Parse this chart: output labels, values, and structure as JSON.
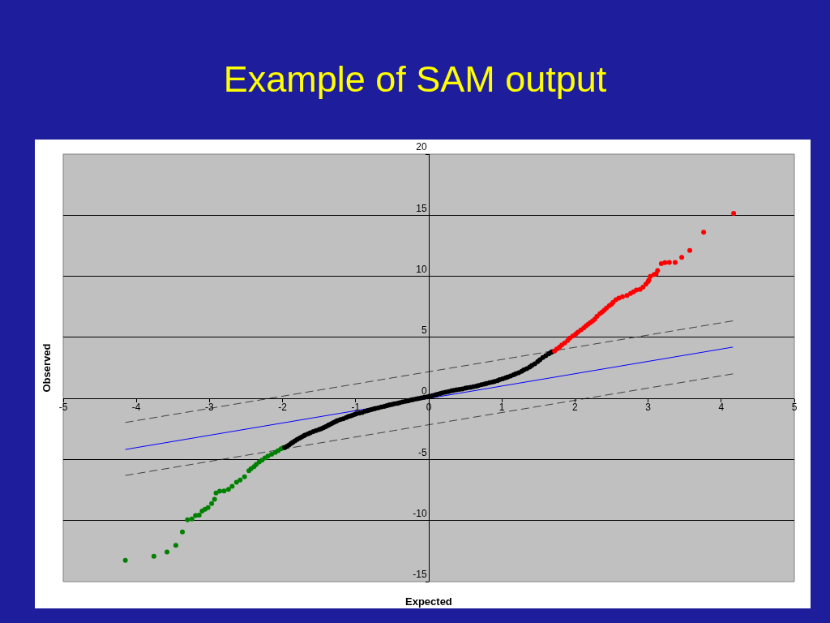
{
  "chart_data": {
    "type": "scatter",
    "title": "Example of SAM output",
    "xlabel": "Expected",
    "ylabel": "Observed",
    "xlim": [
      -5,
      5
    ],
    "ylim": [
      -15,
      20
    ],
    "xticks": [
      -5,
      -4,
      -3,
      -2,
      -1,
      0,
      1,
      2,
      3,
      4,
      5
    ],
    "yticks": [
      -15,
      -10,
      -5,
      0,
      5,
      10,
      15,
      20
    ],
    "grid": "y",
    "marker": "circle",
    "series": [
      {
        "type": "line",
        "marker": "none",
        "color": "#0000ff",
        "line_style": "solid",
        "x": [
          -4.15,
          4.16
        ],
        "values": [
          -4.18,
          4.2
        ]
      },
      {
        "type": "line",
        "marker": "none",
        "color": "#404040",
        "line_style": "dashed",
        "x": [
          -4.15,
          4.16
        ],
        "values": [
          -1.97,
          6.35
        ]
      },
      {
        "type": "line",
        "marker": "none",
        "color": "#404040",
        "line_style": "dashed",
        "x": [
          -4.15,
          4.16
        ],
        "values": [
          -6.31,
          2.01
        ]
      },
      {
        "color": "#008000",
        "x": [
          -4.15,
          -3.76,
          -3.58,
          -3.46,
          -3.37,
          -3.3,
          -3.24,
          -3.19,
          -3.14,
          -3.1,
          -3.06,
          -3.02,
          -2.97,
          -2.93,
          -2.91,
          -2.86,
          -2.8,
          -2.74,
          -2.69,
          -2.63,
          -2.58,
          -2.52,
          -2.46,
          -2.43,
          -2.39,
          -2.36,
          -2.32,
          -2.28,
          -2.24,
          -2.2,
          -2.15,
          -2.1,
          -2.06,
          -2.02,
          -1.99
        ],
        "values": [
          -13.26,
          -12.93,
          -12.57,
          -12.02,
          -10.93,
          -9.94,
          -9.87,
          -9.59,
          -9.56,
          -9.23,
          -9.08,
          -8.94,
          -8.61,
          -8.26,
          -7.75,
          -7.59,
          -7.57,
          -7.44,
          -7.19,
          -6.86,
          -6.68,
          -6.42,
          -5.91,
          -5.75,
          -5.58,
          -5.4,
          -5.2,
          -5.05,
          -4.87,
          -4.72,
          -4.58,
          -4.42,
          -4.27,
          -4.12,
          -4.03
        ]
      },
      {
        "color": "#000000",
        "x": [
          -1.97,
          -1.94,
          -1.91,
          -1.88,
          -1.86,
          -1.83,
          -1.8,
          -1.77,
          -1.74,
          -1.71,
          -1.69,
          -1.65,
          -1.62,
          -1.58,
          -1.54,
          -1.5,
          -1.47,
          -1.44,
          -1.41,
          -1.38,
          -1.36,
          -1.33,
          -1.3,
          -1.27,
          -1.25,
          -1.21,
          -1.17,
          -1.13,
          -1.1,
          -1.07,
          -1.04,
          -1.01,
          -0.99,
          -0.95,
          -0.91,
          -0.87,
          -0.84,
          -0.81,
          -0.78,
          -0.75,
          -0.73,
          -0.69,
          -0.65,
          -0.61,
          -0.58,
          -0.55,
          -0.53,
          -0.5,
          -0.47,
          -0.43,
          -0.4,
          -0.36,
          -0.32,
          -0.29,
          -0.27,
          -0.24,
          -0.21,
          -0.17,
          -0.14,
          -0.1,
          -0.06,
          -0.02,
          0.01,
          0.05,
          0.09,
          0.12,
          0.16,
          0.19,
          0.23,
          0.27,
          0.31,
          0.34,
          0.38,
          0.42,
          0.46,
          0.5,
          0.53,
          0.57,
          0.61,
          0.65,
          0.68,
          0.72,
          0.76,
          0.79,
          0.83,
          0.87,
          0.9,
          0.94,
          0.97,
          1.01,
          1.05,
          1.08,
          1.12,
          1.16,
          1.19,
          1.23,
          1.27,
          1.3,
          1.34,
          1.38,
          1.41,
          1.45,
          1.49,
          1.52,
          1.56,
          1.6,
          1.64,
          1.67,
          1.69
        ],
        "values": [
          -4.03,
          -3.92,
          -3.81,
          -3.68,
          -3.59,
          -3.47,
          -3.36,
          -3.26,
          -3.17,
          -3.06,
          -2.99,
          -2.89,
          -2.81,
          -2.72,
          -2.63,
          -2.55,
          -2.48,
          -2.4,
          -2.32,
          -2.22,
          -2.15,
          -2.06,
          -1.97,
          -1.88,
          -1.82,
          -1.74,
          -1.66,
          -1.56,
          -1.48,
          -1.43,
          -1.37,
          -1.3,
          -1.26,
          -1.21,
          -1.15,
          -1.06,
          -1.0,
          -0.96,
          -0.91,
          -0.85,
          -0.82,
          -0.77,
          -0.71,
          -0.65,
          -0.6,
          -0.56,
          -0.53,
          -0.49,
          -0.44,
          -0.4,
          -0.35,
          -0.29,
          -0.24,
          -0.21,
          -0.18,
          -0.13,
          -0.09,
          -0.04,
          0.0,
          0.05,
          0.09,
          0.13,
          0.18,
          0.23,
          0.29,
          0.34,
          0.4,
          0.45,
          0.51,
          0.56,
          0.62,
          0.65,
          0.7,
          0.74,
          0.78,
          0.84,
          0.88,
          0.91,
          0.96,
          1.01,
          1.06,
          1.12,
          1.17,
          1.22,
          1.28,
          1.34,
          1.39,
          1.46,
          1.53,
          1.61,
          1.69,
          1.76,
          1.84,
          1.93,
          2.02,
          2.1,
          2.22,
          2.33,
          2.43,
          2.57,
          2.7,
          2.83,
          3.01,
          3.17,
          3.34,
          3.49,
          3.65,
          3.76,
          3.82
        ]
      },
      {
        "color": "#ff0000",
        "x": [
          1.72,
          1.75,
          1.79,
          1.82,
          1.86,
          1.9,
          1.93,
          1.97,
          2.01,
          2.04,
          2.08,
          2.12,
          2.15,
          2.18,
          2.21,
          2.24,
          2.27,
          2.3,
          2.34,
          2.37,
          2.4,
          2.43,
          2.47,
          2.5,
          2.52,
          2.56,
          2.6,
          2.65,
          2.71,
          2.76,
          2.8,
          2.84,
          2.89,
          2.93,
          2.97,
          3.0,
          3.01,
          3.03,
          3.08,
          3.11,
          3.13,
          3.18,
          3.23,
          3.29,
          3.37,
          3.46,
          3.57,
          3.76,
          4.17
        ],
        "values": [
          3.87,
          4.04,
          4.21,
          4.37,
          4.54,
          4.74,
          4.94,
          5.1,
          5.27,
          5.43,
          5.6,
          5.77,
          5.93,
          6.07,
          6.2,
          6.34,
          6.49,
          6.71,
          6.93,
          7.07,
          7.22,
          7.4,
          7.59,
          7.72,
          7.86,
          8.08,
          8.21,
          8.32,
          8.43,
          8.59,
          8.73,
          8.88,
          8.92,
          9.1,
          9.36,
          9.58,
          9.69,
          9.98,
          10.14,
          10.2,
          10.47,
          11.04,
          11.11,
          11.14,
          11.14,
          11.55,
          12.11,
          13.61,
          15.16
        ]
      }
    ]
  }
}
